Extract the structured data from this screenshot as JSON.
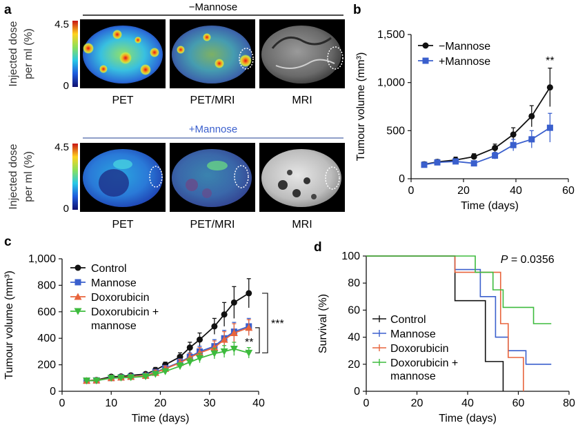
{
  "panels": {
    "a": {
      "letter": "a",
      "top_label": "−Mannose",
      "bottom_label": "+Mannose",
      "colorbar_label": "Injected dose per ml (%)",
      "colorbar_label_line1": "Injected dose",
      "colorbar_label_line2": "per ml (%)",
      "colorbar_max": "4.5",
      "colorbar_min": "0",
      "image_labels": [
        "PET",
        "PET/MRI",
        "MRI"
      ]
    },
    "b": {
      "letter": "b"
    },
    "c": {
      "letter": "c"
    },
    "d": {
      "letter": "d"
    }
  },
  "colors": {
    "minus_mannose": "#111111",
    "plus_mannose": "#3a5fcd",
    "control": "#111111",
    "mannose": "#3a5fcd",
    "doxorubicin": "#e8643c",
    "dox_mannose": "#3dbb3d",
    "mannose_rule": "#6a7fb5"
  },
  "chart_data": [
    {
      "id": "b",
      "type": "line",
      "xlabel": "Time (days)",
      "ylabel": "Tumour volume (mm³)",
      "xlim": [
        0,
        60
      ],
      "ylim": [
        0,
        1500
      ],
      "xticks": [
        "0",
        "20",
        "40",
        "60"
      ],
      "yticks": [
        "0",
        "500",
        "1,000",
        "1,500"
      ],
      "legend": "top-left",
      "annotation": "**",
      "series": [
        {
          "name": "−Mannose",
          "marker": "circle",
          "color_key": "minus_mannose",
          "x": [
            5,
            10,
            17,
            24,
            32,
            39,
            46,
            53
          ],
          "y": [
            150,
            175,
            195,
            230,
            320,
            460,
            650,
            950
          ],
          "err": [
            25,
            25,
            30,
            30,
            40,
            70,
            110,
            200
          ]
        },
        {
          "name": "+Mannose",
          "marker": "square",
          "color_key": "plus_mannose",
          "x": [
            5,
            10,
            17,
            24,
            32,
            39,
            46,
            53
          ],
          "y": [
            145,
            170,
            180,
            160,
            240,
            350,
            410,
            530
          ],
          "err": [
            20,
            20,
            25,
            25,
            35,
            60,
            90,
            150
          ]
        }
      ]
    },
    {
      "id": "c",
      "type": "line",
      "xlabel": "Time (days)",
      "ylabel": "Tumour volume (mm³)",
      "xlim": [
        0,
        40
      ],
      "ylim": [
        0,
        1000
      ],
      "xticks": [
        "0",
        "10",
        "20",
        "30",
        "40"
      ],
      "yticks": [
        "0",
        "200",
        "400",
        "600",
        "800",
        "1,000"
      ],
      "legend": "top-left",
      "annotations": [
        "***",
        "**"
      ],
      "series": [
        {
          "name": "Control",
          "marker": "circle",
          "color_key": "control",
          "x": [
            5,
            7,
            10,
            12,
            14,
            17,
            19,
            21,
            24,
            26,
            28,
            31,
            33,
            35,
            38
          ],
          "y": [
            80,
            85,
            110,
            112,
            120,
            130,
            160,
            200,
            260,
            330,
            390,
            490,
            580,
            670,
            740
          ],
          "err": [
            15,
            15,
            15,
            15,
            15,
            15,
            20,
            20,
            30,
            40,
            50,
            60,
            90,
            120,
            110
          ]
        },
        {
          "name": "Mannose",
          "marker": "square",
          "color_key": "mannose",
          "x": [
            5,
            7,
            10,
            12,
            14,
            17,
            19,
            21,
            24,
            26,
            28,
            31,
            33,
            35,
            38
          ],
          "y": [
            80,
            82,
            100,
            105,
            110,
            118,
            145,
            175,
            220,
            260,
            300,
            340,
            400,
            450,
            490
          ],
          "err": [
            15,
            15,
            15,
            15,
            15,
            15,
            20,
            20,
            25,
            30,
            40,
            50,
            60,
            70,
            60
          ]
        },
        {
          "name": "Doxorubicin",
          "marker": "triangle-up",
          "color_key": "doxorubicin",
          "x": [
            5,
            7,
            10,
            12,
            14,
            17,
            19,
            21,
            24,
            26,
            28,
            31,
            33,
            35,
            38
          ],
          "y": [
            80,
            83,
            100,
            105,
            110,
            118,
            140,
            170,
            215,
            255,
            290,
            330,
            390,
            440,
            480
          ],
          "err": [
            15,
            15,
            15,
            15,
            15,
            15,
            20,
            20,
            25,
            30,
            40,
            50,
            60,
            70,
            60
          ]
        },
        {
          "name": "Doxorubicin + mannose",
          "marker": "triangle-down",
          "color_key": "dox_mannose",
          "x": [
            5,
            7,
            10,
            12,
            14,
            17,
            19,
            21,
            24,
            26,
            28,
            31,
            33,
            35,
            38
          ],
          "y": [
            80,
            80,
            100,
            102,
            105,
            112,
            130,
            150,
            190,
            220,
            250,
            285,
            300,
            320,
            290
          ],
          "err": [
            15,
            15,
            15,
            15,
            15,
            15,
            20,
            20,
            25,
            30,
            35,
            40,
            45,
            50,
            40
          ]
        }
      ]
    },
    {
      "id": "d",
      "type": "line",
      "subtype": "step",
      "xlabel": "Time (days)",
      "ylabel": "Survival (%)",
      "xlim": [
        0,
        80
      ],
      "ylim": [
        0,
        100
      ],
      "xticks": [
        "0",
        "20",
        "40",
        "60",
        "80"
      ],
      "yticks": [
        "0",
        "20",
        "40",
        "60",
        "80",
        "100"
      ],
      "legend": "bottom-left",
      "annotation": "P = 0.0356",
      "annotation_italic": "P",
      "annotation_rest": " = 0.0356",
      "series": [
        {
          "name": "Control",
          "color_key": "control",
          "x": [
            0,
            35,
            35,
            47,
            47,
            54,
            54
          ],
          "y": [
            100,
            100,
            67,
            67,
            22,
            22,
            0
          ]
        },
        {
          "name": "Mannose",
          "color_key": "mannose",
          "x": [
            0,
            35,
            35,
            45,
            45,
            51,
            51,
            56,
            56,
            63,
            63,
            73
          ],
          "y": [
            100,
            100,
            90,
            90,
            70,
            70,
            40,
            40,
            30,
            30,
            20,
            20
          ]
        },
        {
          "name": "Doxorubicin",
          "color_key": "doxorubicin",
          "x": [
            0,
            35,
            35,
            53,
            53,
            56,
            56,
            62,
            62
          ],
          "y": [
            100,
            100,
            88,
            88,
            50,
            50,
            25,
            25,
            0
          ]
        },
        {
          "name": "Doxorubicin + mannose",
          "color_key": "dox_mannose",
          "x": [
            0,
            43,
            43,
            50,
            50,
            54,
            54,
            66,
            66,
            73
          ],
          "y": [
            100,
            100,
            88,
            88,
            75,
            75,
            62,
            62,
            50,
            50
          ]
        }
      ]
    }
  ],
  "legend_text": {
    "b": [
      "−Mannose",
      "+Mannose"
    ],
    "c": [
      "Control",
      "Mannose",
      "Doxorubicin",
      "Doxorubicin +",
      "mannose"
    ],
    "d": [
      "Control",
      "Mannose",
      "Doxorubicin",
      "Doxorubicin +",
      "mannose"
    ]
  }
}
